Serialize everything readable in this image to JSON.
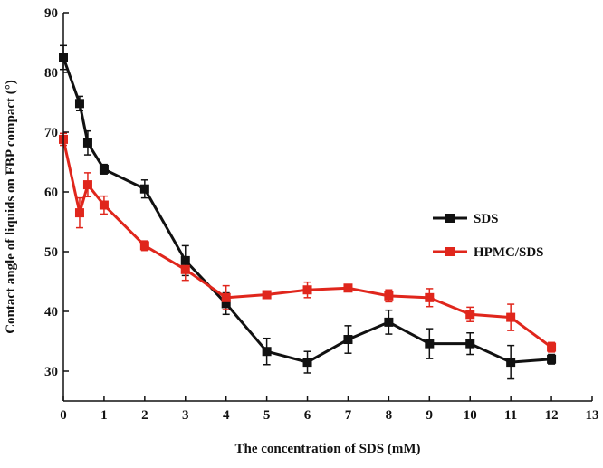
{
  "chart_data": {
    "type": "line",
    "title": "",
    "xlabel": "The concentration of SDS (mM)",
    "ylabel": "Contact angle of  liquids on FBP compact (°)",
    "xlim": [
      0,
      13
    ],
    "ylim": [
      25,
      90
    ],
    "xticks": [
      "0",
      "1",
      "2",
      "3",
      "4",
      "5",
      "6",
      "7",
      "8",
      "9",
      "10",
      "11",
      "12",
      "13"
    ],
    "yticks": [
      "30",
      "40",
      "50",
      "60",
      "70",
      "80",
      "90"
    ],
    "grid": false,
    "legend_position": "right",
    "series": [
      {
        "name": "SDS",
        "color": "#111111",
        "marker": "square",
        "points": [
          {
            "x": 0,
            "y": 82.5,
            "err": 2.0
          },
          {
            "x": 0.4,
            "y": 74.8,
            "err": 1.2
          },
          {
            "x": 0.6,
            "y": 68.2,
            "err": 2.0
          },
          {
            "x": 1,
            "y": 63.8,
            "err": 0.8
          },
          {
            "x": 2,
            "y": 60.5,
            "err": 1.5
          },
          {
            "x": 3,
            "y": 48.5,
            "err": 2.5
          },
          {
            "x": 4,
            "y": 41.3,
            "err": 1.8
          },
          {
            "x": 5,
            "y": 33.3,
            "err": 2.2
          },
          {
            "x": 6,
            "y": 31.5,
            "err": 1.8
          },
          {
            "x": 7,
            "y": 35.3,
            "err": 2.3
          },
          {
            "x": 8,
            "y": 38.2,
            "err": 2.0
          },
          {
            "x": 9,
            "y": 34.6,
            "err": 2.5
          },
          {
            "x": 10,
            "y": 34.6,
            "err": 1.8
          },
          {
            "x": 11,
            "y": 31.5,
            "err": 2.8
          },
          {
            "x": 12,
            "y": 32.0,
            "err": 0.8
          }
        ]
      },
      {
        "name": "HPMC/SDS",
        "color": "#e0261c",
        "marker": "square",
        "points": [
          {
            "x": 0,
            "y": 68.8,
            "err": 1.0
          },
          {
            "x": 0.4,
            "y": 56.5,
            "err": 2.5
          },
          {
            "x": 0.6,
            "y": 61.2,
            "err": 2.0
          },
          {
            "x": 1,
            "y": 57.8,
            "err": 1.5
          },
          {
            "x": 2,
            "y": 51.0,
            "err": 0.8
          },
          {
            "x": 3,
            "y": 47.0,
            "err": 1.8
          },
          {
            "x": 4,
            "y": 42.3,
            "err": 2.0
          },
          {
            "x": 5,
            "y": 42.8,
            "err": 0.5
          },
          {
            "x": 6,
            "y": 43.6,
            "err": 1.3
          },
          {
            "x": 7,
            "y": 43.9,
            "err": 0.5
          },
          {
            "x": 8,
            "y": 42.6,
            "err": 1.0
          },
          {
            "x": 9,
            "y": 42.3,
            "err": 1.5
          },
          {
            "x": 10,
            "y": 39.5,
            "err": 1.2
          },
          {
            "x": 11,
            "y": 39.0,
            "err": 2.2
          },
          {
            "x": 12,
            "y": 34.0,
            "err": 0.8
          }
        ]
      }
    ]
  }
}
